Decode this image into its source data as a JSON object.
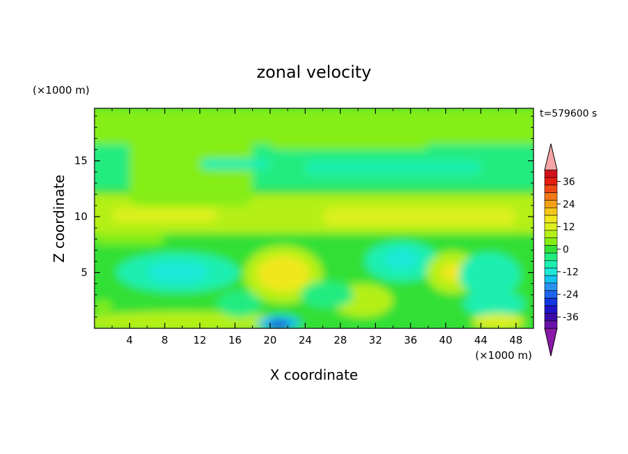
{
  "chart_data": {
    "type": "heatmap",
    "title": "zonal velocity",
    "xlabel": "X coordinate",
    "ylabel": "Z coordinate",
    "x_unit": "(×1000 m)",
    "y_unit": "(×1000 m)",
    "time_label": "t=579600 s",
    "xlim": [
      0,
      50
    ],
    "ylim": [
      0,
      19.7
    ],
    "x_ticks": [
      4,
      8,
      12,
      16,
      20,
      24,
      28,
      32,
      36,
      40,
      44,
      48
    ],
    "y_ticks": [
      5,
      10,
      15
    ],
    "colorbar": {
      "levels": [
        -42,
        -39,
        -36,
        -33,
        -30,
        -27,
        -24,
        -21,
        -18,
        -15,
        -12,
        -9,
        -6,
        -3,
        0,
        3,
        6,
        9,
        12,
        15,
        18,
        21,
        24,
        27,
        30,
        33,
        36,
        39,
        42
      ],
      "tick_labels": [
        "36",
        "24",
        "12",
        "0",
        "-12",
        "-24",
        "-36"
      ],
      "tick_values": [
        36,
        24,
        12,
        0,
        -12,
        -24,
        -36
      ],
      "colors": [
        "#6a12a8",
        "#3a0aa6",
        "#1e14c8",
        "#1236e0",
        "#1f64ee",
        "#2a92f2",
        "#14c2f0",
        "#1fe8d8",
        "#1aefb0",
        "#22ec80",
        "#33e035",
        "#84ee14",
        "#b4f016",
        "#dcf01c",
        "#f0e81c",
        "#f4c61a",
        "#f4a016",
        "#f27816",
        "#ee4a14",
        "#e41e12",
        "#d0101a"
      ],
      "under_color": "#8a18a8",
      "over_color": "#f4a4a4"
    },
    "field_description": [
      {
        "z_range": [
          12.5,
          16.5
        ],
        "value": -6
      },
      {
        "z_range": [
          8.5,
          12
        ],
        "value": 4
      },
      {
        "z_range": [
          16.5,
          19.7
        ],
        "value": 0
      },
      {
        "z_range": [
          0,
          8.5
        ],
        "value": -3
      }
    ],
    "features": [
      {
        "x": 21.5,
        "z": 5.0,
        "value": 9
      },
      {
        "x": 9.5,
        "z": 5.0,
        "value": -9
      },
      {
        "x": 35,
        "z": 6.0,
        "value": -9
      },
      {
        "x": 40.5,
        "z": 5.0,
        "value": 6
      },
      {
        "x": 21,
        "z": 0.5,
        "value": -24
      },
      {
        "x": 45,
        "z": 2.5,
        "value": -9
      }
    ]
  }
}
